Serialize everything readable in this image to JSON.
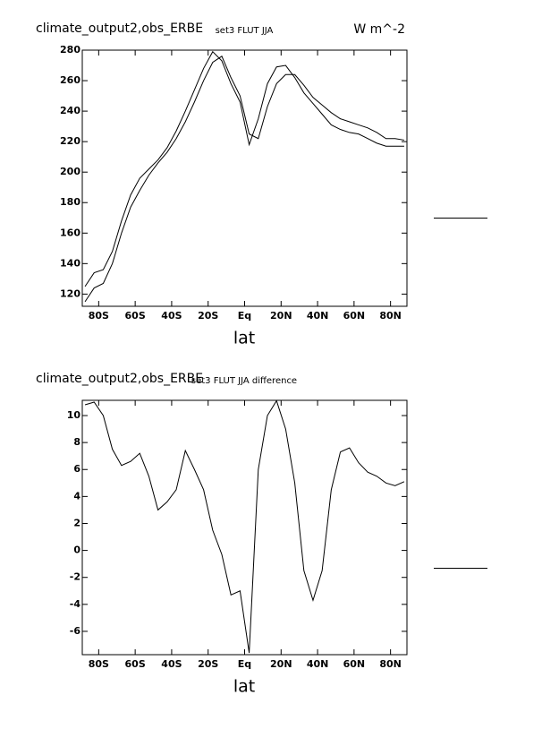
{
  "chart_data": [
    {
      "type": "line",
      "title": "climate_output2,obs_ERBE",
      "subtitle": "set3 FLUT JJA",
      "units": "W m^-2",
      "xlabel": "lat",
      "x": [
        -87.5,
        -82.5,
        -77.5,
        -72.5,
        -67.5,
        -62.5,
        -57.5,
        -52.5,
        -47.5,
        -42.5,
        -37.5,
        -32.5,
        -27.5,
        -22.5,
        -17.5,
        -12.5,
        -7.5,
        -2.5,
        2.5,
        7.5,
        12.5,
        17.5,
        22.5,
        27.5,
        32.5,
        37.5,
        42.5,
        47.5,
        52.5,
        57.5,
        62.5,
        67.5,
        72.5,
        77.5,
        82.5,
        87.5
      ],
      "series": [
        {
          "color": "#000000",
          "values": [
            125,
            134,
            136,
            148,
            168,
            185,
            196,
            202,
            208,
            216,
            227,
            240,
            254,
            268,
            279,
            273,
            258,
            246,
            218,
            235,
            258,
            269,
            270,
            262,
            252,
            245,
            238,
            231,
            228,
            226,
            225,
            222,
            219,
            217,
            217,
            217
          ]
        },
        {
          "color": "#000000",
          "values": [
            115,
            124,
            127,
            140,
            160,
            177,
            188,
            198,
            206,
            213,
            222,
            233,
            246,
            260,
            272,
            276,
            262,
            250,
            225,
            222,
            243,
            258,
            264,
            264,
            257,
            249,
            244,
            239,
            235,
            233,
            231,
            229,
            226,
            222,
            222,
            221
          ]
        }
      ],
      "xlim": [
        -89,
        89
      ],
      "ylim": [
        112,
        280
      ],
      "xticks": [
        {
          "value": -80,
          "label": "80S"
        },
        {
          "value": -60,
          "label": "60S"
        },
        {
          "value": -40,
          "label": "40S"
        },
        {
          "value": -20,
          "label": "20S"
        },
        {
          "value": 0,
          "label": "Eq"
        },
        {
          "value": 20,
          "label": "20N"
        },
        {
          "value": 40,
          "label": "40N"
        },
        {
          "value": 60,
          "label": "60N"
        },
        {
          "value": 80,
          "label": "80N"
        }
      ],
      "yticks": [
        120,
        140,
        160,
        180,
        200,
        220,
        240,
        260,
        280
      ]
    },
    {
      "type": "line",
      "title": "climate_output2,obs_ERBE",
      "subtitle": "set3 FLUT JJA difference",
      "xlabel": "lat",
      "x": [
        -87.5,
        -82.5,
        -77.5,
        -72.5,
        -67.5,
        -62.5,
        -57.5,
        -52.5,
        -47.5,
        -42.5,
        -37.5,
        -32.5,
        -27.5,
        -22.5,
        -17.5,
        -12.5,
        -7.5,
        -2.5,
        2.5,
        7.5,
        12.5,
        17.5,
        22.5,
        27.5,
        32.5,
        37.5,
        42.5,
        47.5,
        52.5,
        57.5,
        62.5,
        67.5,
        72.5,
        77.5,
        82.5,
        87.5
      ],
      "series": [
        {
          "color": "#000000",
          "values": [
            10.8,
            11.0,
            10.0,
            7.5,
            6.3,
            6.6,
            7.2,
            5.5,
            3.0,
            3.6,
            4.5,
            7.4,
            6.0,
            4.5,
            1.5,
            -0.3,
            -3.3,
            -3.0,
            -7.6,
            6.0,
            10.0,
            11.1,
            9.0,
            5.0,
            -1.5,
            -3.7,
            -1.5,
            4.5,
            7.3,
            7.6,
            6.5,
            5.8,
            5.5,
            5.0,
            4.8,
            5.1
          ]
        }
      ],
      "xlim": [
        -89,
        89
      ],
      "ylim": [
        -7.73,
        11.13
      ],
      "xticks": [
        {
          "value": -80,
          "label": "80S"
        },
        {
          "value": -60,
          "label": "60S"
        },
        {
          "value": -40,
          "label": "40S"
        },
        {
          "value": -20,
          "label": "20S"
        },
        {
          "value": 0,
          "label": "Eq"
        },
        {
          "value": 20,
          "label": "20N"
        },
        {
          "value": 40,
          "label": "40N"
        },
        {
          "value": 60,
          "label": "60N"
        },
        {
          "value": 80,
          "label": "80N"
        }
      ],
      "yticks": [
        -6,
        -4,
        -2,
        0,
        2,
        4,
        6,
        8,
        10
      ]
    }
  ]
}
